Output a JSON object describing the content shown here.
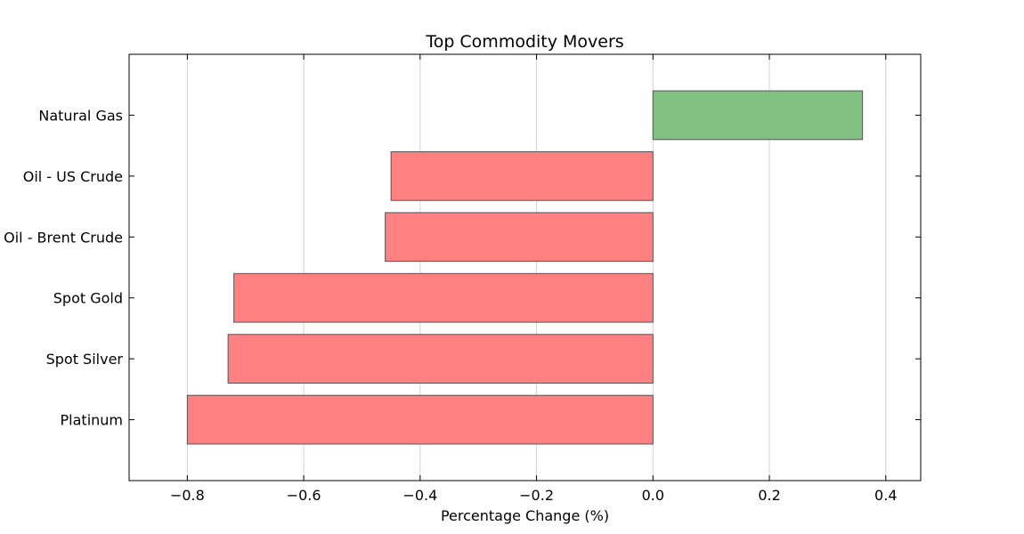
{
  "chart_data": {
    "type": "bar",
    "orientation": "horizontal",
    "title": "Top Commodity Movers",
    "xlabel": "Percentage Change (%)",
    "ylabel": "",
    "categories": [
      "Natural Gas",
      "Oil - US Crude",
      "Oil - Brent Crude",
      "Spot Gold",
      "Spot Silver",
      "Platinum"
    ],
    "values": [
      0.36,
      -0.45,
      -0.46,
      -0.72,
      -0.73,
      -0.8
    ],
    "xlim": [
      -0.9,
      0.46
    ],
    "xticks": [
      -0.8,
      -0.6,
      -0.4,
      -0.2,
      0.0,
      0.2,
      0.4
    ],
    "xtick_labels": [
      "−0.8",
      "−0.6",
      "−0.4",
      "−0.2",
      "0.0",
      "0.2",
      "0.4"
    ],
    "grid": "vertical",
    "colors": {
      "positive": "#80c080",
      "negative": "#ff8080",
      "bar_edge": "#555555",
      "grid": "#d3d3d3",
      "axes": "#000000"
    }
  }
}
